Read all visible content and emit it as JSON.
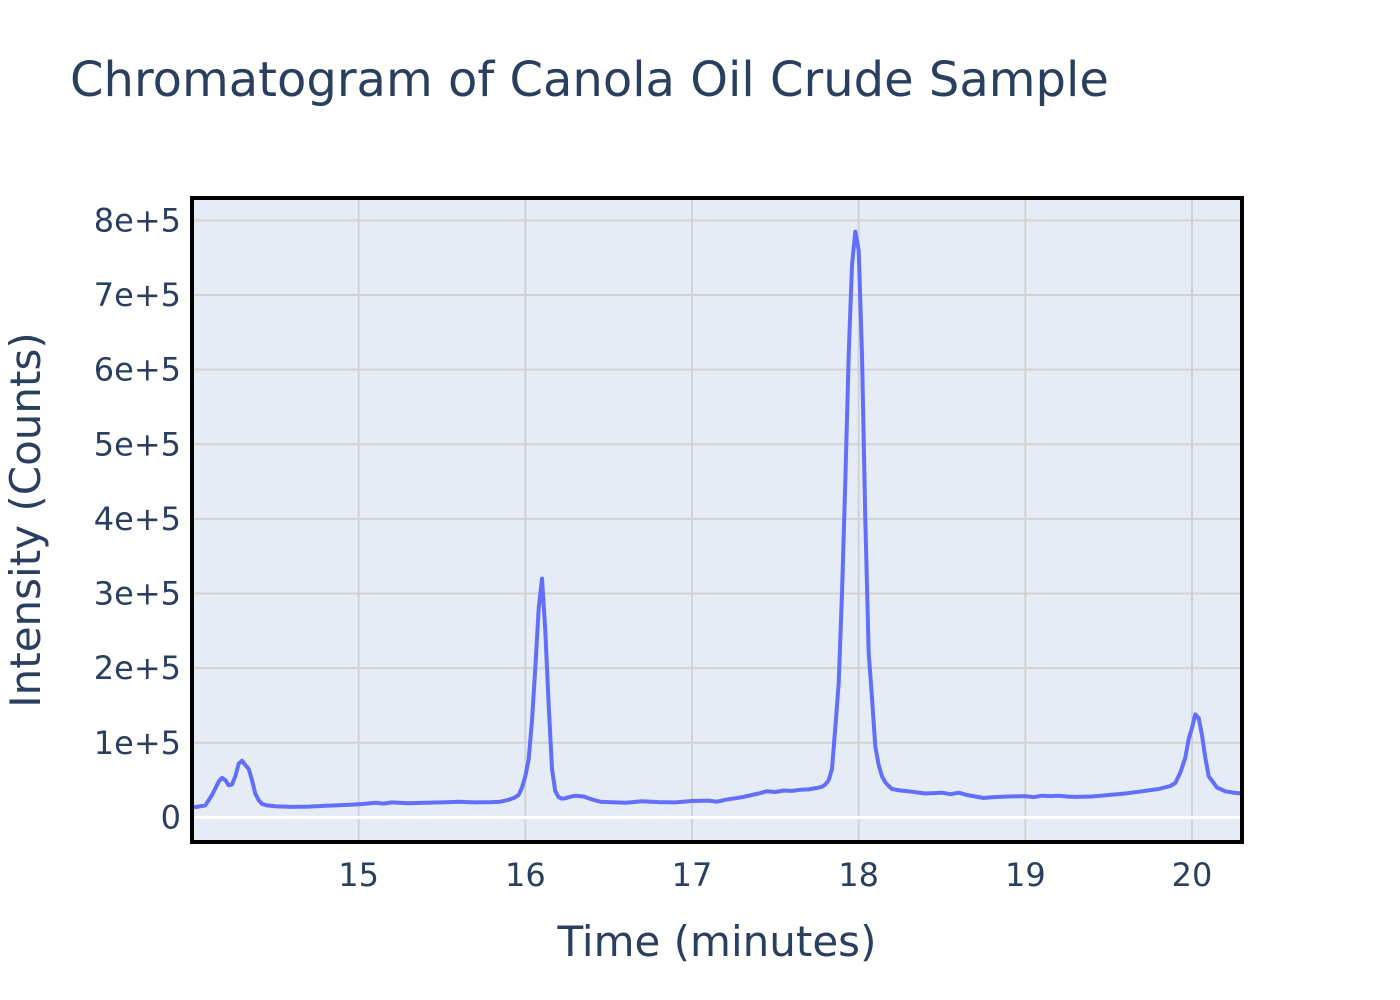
{
  "chart_data": {
    "type": "line",
    "title": "Chromatogram of Canola Oil Crude Sample",
    "xlabel": "Time (minutes)",
    "ylabel": "Intensity (Counts)",
    "xlim": [
      14.0,
      20.3
    ],
    "ylim": [
      -33000,
      830000
    ],
    "grid": true,
    "legend": "none",
    "line_color": "#636efa",
    "plot_bg": "#e5ecf6",
    "x_ticks": [
      15,
      16,
      17,
      18,
      19,
      20
    ],
    "x_tick_labels": [
      "15",
      "16",
      "17",
      "18",
      "19",
      "20"
    ],
    "y_ticks": [
      0,
      100000,
      200000,
      300000,
      400000,
      500000,
      600000,
      700000,
      800000
    ],
    "y_tick_labels": [
      "0",
      "1e+5",
      "2e+5",
      "3e+5",
      "4e+5",
      "5e+5",
      "6e+5",
      "7e+5",
      "8e+5"
    ],
    "series": [
      {
        "x": [
          14.0,
          14.08,
          14.12,
          14.16,
          14.18,
          14.2,
          14.22,
          14.24,
          14.26,
          14.28,
          14.3,
          14.32,
          14.34,
          14.36,
          14.38,
          14.4,
          14.42,
          14.45,
          14.5,
          14.6,
          14.7,
          14.8,
          14.9,
          15.0,
          15.05,
          15.1,
          15.15,
          15.2,
          15.3,
          15.4,
          15.5,
          15.55,
          15.6,
          15.65,
          15.7,
          15.8,
          15.85,
          15.9,
          15.93,
          15.96,
          15.98,
          16.0,
          16.02,
          16.04,
          16.06,
          16.08,
          16.1,
          16.12,
          16.14,
          16.16,
          16.18,
          16.2,
          16.22,
          16.24,
          16.26,
          16.3,
          16.35,
          16.4,
          16.45,
          16.5,
          16.6,
          16.7,
          16.8,
          16.9,
          17.0,
          17.1,
          17.15,
          17.2,
          17.3,
          17.4,
          17.45,
          17.5,
          17.55,
          17.6,
          17.65,
          17.7,
          17.75,
          17.78,
          17.8,
          17.82,
          17.84,
          17.86,
          17.88,
          17.9,
          17.92,
          17.94,
          17.96,
          17.98,
          18.0,
          18.02,
          18.04,
          18.06,
          18.08,
          18.1,
          18.12,
          18.14,
          18.16,
          18.18,
          18.2,
          18.25,
          18.3,
          18.4,
          18.5,
          18.55,
          18.6,
          18.65,
          18.7,
          18.75,
          18.8,
          18.9,
          19.0,
          19.05,
          19.1,
          19.15,
          19.2,
          19.25,
          19.3,
          19.4,
          19.5,
          19.6,
          19.7,
          19.8,
          19.87,
          19.9,
          19.93,
          19.96,
          19.98,
          20.0,
          20.02,
          20.04,
          20.06,
          20.08,
          20.1,
          20.15,
          20.2,
          20.25,
          20.3
        ],
        "y": [
          13000,
          16000,
          30000,
          48000,
          53000,
          50000,
          43000,
          44000,
          55000,
          72000,
          76000,
          70000,
          65000,
          50000,
          32000,
          23000,
          18000,
          16000,
          15000,
          14000,
          14500,
          15500,
          16500,
          17500,
          18500,
          19500,
          18500,
          20000,
          19000,
          19500,
          20000,
          20500,
          21000,
          20500,
          20000,
          20500,
          21000,
          23500,
          26000,
          30000,
          40000,
          55000,
          78000,
          130000,
          200000,
          280000,
          320000,
          250000,
          150000,
          65000,
          35000,
          27000,
          25000,
          25500,
          27000,
          29000,
          28000,
          24000,
          21000,
          20500,
          19500,
          21500,
          20500,
          20000,
          22000,
          22500,
          21000,
          23500,
          27000,
          32000,
          35000,
          34000,
          36000,
          35500,
          37000,
          37500,
          39500,
          41000,
          44000,
          50000,
          65000,
          120000,
          180000,
          300000,
          450000,
          620000,
          740000,
          785000,
          760000,
          620000,
          400000,
          220000,
          160000,
          95000,
          70000,
          55000,
          47000,
          42000,
          38000,
          36000,
          35000,
          32000,
          33000,
          31000,
          33000,
          30000,
          28000,
          26000,
          27000,
          28000,
          28500,
          27000,
          29000,
          28500,
          29000,
          28000,
          27500,
          28000,
          30000,
          32000,
          35000,
          38000,
          42000,
          46000,
          60000,
          80000,
          105000,
          120000,
          138000,
          133000,
          110000,
          80000,
          55000,
          40000,
          35000,
          33000,
          32000
        ]
      }
    ]
  }
}
